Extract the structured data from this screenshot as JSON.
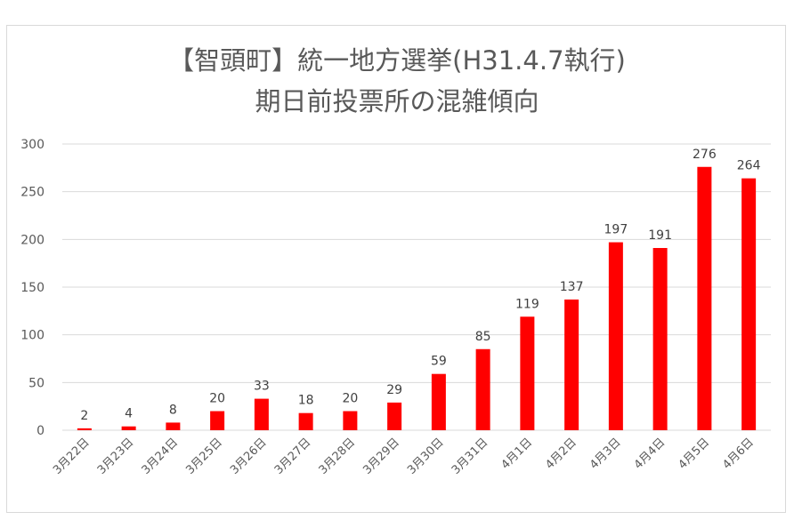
{
  "chart_data": {
    "type": "bar",
    "title": "【智頭町】統一地方選挙(H31.4.7執行)",
    "subtitle": "期日前投票所の混雑傾向",
    "categories": [
      "3月22日",
      "3月23日",
      "3月24日",
      "3月25日",
      "3月26日",
      "3月27日",
      "3月28日",
      "3月29日",
      "3月30日",
      "3月31日",
      "4月1日",
      "4月2日",
      "4月3日",
      "4月4日",
      "4月5日",
      "4月6日"
    ],
    "values": [
      2,
      4,
      8,
      20,
      33,
      18,
      20,
      29,
      59,
      85,
      119,
      137,
      197,
      191,
      276,
      264
    ],
    "ylim": [
      0,
      300
    ],
    "yticks": [
      0,
      50,
      100,
      150,
      200,
      250,
      300
    ],
    "grid": true,
    "legend": "none",
    "bar_color": "#ff0000",
    "grid_color": "#d9d9d9"
  }
}
